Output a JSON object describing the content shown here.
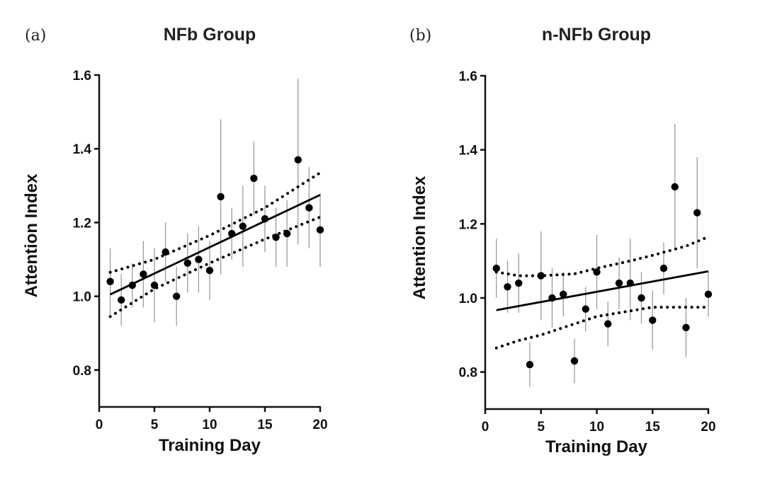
{
  "chart_data": [
    {
      "type": "scatter",
      "panel_label": "(a)",
      "title": "NFb Group",
      "xlabel": "Training Day",
      "ylabel": "Attention Index",
      "xlim": [
        0,
        20
      ],
      "ylim": [
        0.7,
        1.6
      ],
      "xticks": [
        0,
        5,
        10,
        15,
        20
      ],
      "yticks": [
        0.8,
        1.0,
        1.2,
        1.4,
        1.6
      ],
      "x": [
        1,
        2,
        3,
        4,
        5,
        6,
        7,
        8,
        9,
        10,
        11,
        12,
        13,
        14,
        15,
        16,
        17,
        18,
        19,
        20
      ],
      "y": [
        1.04,
        0.99,
        1.03,
        1.06,
        1.03,
        1.12,
        1.0,
        1.09,
        1.1,
        1.07,
        1.27,
        1.17,
        1.19,
        1.32,
        1.21,
        1.16,
        1.17,
        1.37,
        1.24,
        1.18
      ],
      "err_low": [
        0.95,
        0.92,
        0.97,
        0.97,
        0.93,
        1.04,
        0.92,
        1.01,
        1.01,
        0.99,
        1.06,
        1.1,
        1.08,
        1.22,
        1.12,
        1.08,
        1.08,
        1.14,
        1.13,
        1.08
      ],
      "err_high": [
        1.13,
        1.06,
        1.09,
        1.15,
        1.13,
        1.2,
        1.08,
        1.17,
        1.19,
        1.15,
        1.48,
        1.24,
        1.3,
        1.42,
        1.3,
        1.24,
        1.26,
        1.59,
        1.35,
        1.28
      ],
      "fit": {
        "x": [
          1,
          20
        ],
        "y": [
          1.005,
          1.275
        ]
      },
      "ci_upper": {
        "x": [
          1,
          5,
          10,
          15,
          20
        ],
        "y": [
          1.065,
          1.1,
          1.165,
          1.24,
          1.335
        ]
      },
      "ci_lower": {
        "x": [
          1,
          5,
          10,
          15,
          20
        ],
        "y": [
          0.945,
          1.02,
          1.09,
          1.155,
          1.215
        ]
      }
    },
    {
      "type": "scatter",
      "panel_label": "(b)",
      "title": "n-NFb Group",
      "xlabel": "Training Day",
      "ylabel": "Attention Index",
      "xlim": [
        0,
        20
      ],
      "ylim": [
        0.7,
        1.6
      ],
      "xticks": [
        0,
        5,
        10,
        15,
        20
      ],
      "yticks": [
        0.8,
        1.0,
        1.2,
        1.4,
        1.6
      ],
      "x": [
        1,
        2,
        3,
        4,
        5,
        6,
        7,
        8,
        9,
        10,
        11,
        12,
        13,
        14,
        15,
        16,
        17,
        18,
        19,
        20
      ],
      "y": [
        1.08,
        1.03,
        1.04,
        0.82,
        1.06,
        1.0,
        1.01,
        0.83,
        0.97,
        1.07,
        0.93,
        1.04,
        1.04,
        1.0,
        0.94,
        1.08,
        1.3,
        0.92,
        1.23,
        1.01
      ],
      "err_low": [
        1.0,
        0.96,
        0.96,
        0.76,
        0.94,
        0.92,
        0.95,
        0.77,
        0.91,
        0.97,
        0.87,
        0.97,
        0.94,
        0.93,
        0.86,
        1.01,
        1.13,
        0.84,
        1.08,
        0.95
      ],
      "err_high": [
        1.16,
        1.1,
        1.12,
        0.88,
        1.18,
        1.08,
        1.07,
        0.89,
        1.03,
        1.17,
        0.99,
        1.11,
        1.16,
        1.07,
        1.02,
        1.15,
        1.47,
        1.0,
        1.38,
        1.07
      ],
      "fit": {
        "x": [
          1,
          20
        ],
        "y": [
          0.967,
          1.072
        ]
      },
      "ci_upper": {
        "x": [
          1,
          3,
          5,
          8,
          10,
          13,
          15,
          18,
          20
        ],
        "y": [
          1.07,
          1.06,
          1.06,
          1.065,
          1.08,
          1.1,
          1.115,
          1.14,
          1.165
        ]
      },
      "ci_lower": {
        "x": [
          1,
          3,
          5,
          8,
          10,
          13,
          15,
          18,
          20
        ],
        "y": [
          0.865,
          0.885,
          0.9,
          0.93,
          0.95,
          0.965,
          0.975,
          0.975,
          0.975
        ]
      }
    }
  ]
}
